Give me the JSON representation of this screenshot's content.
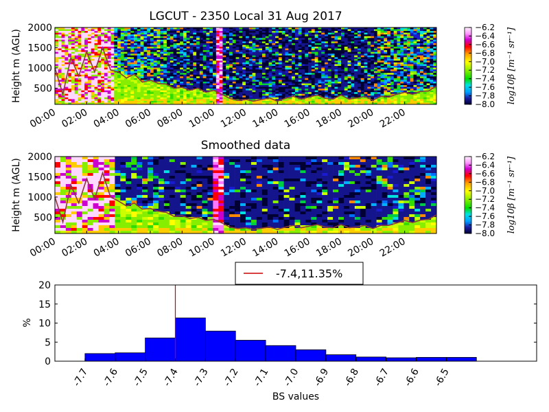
{
  "chart_data": [
    {
      "type": "heatmap",
      "title": "LGCUT - 2350 Local 31 Aug 2017",
      "ylabel": "Height m (AGL)",
      "ylim": [
        100,
        2000
      ],
      "yticks": [
        "500",
        "1000",
        "1500",
        "2000"
      ],
      "xticks": [
        "00:00",
        "02:00",
        "04:00",
        "06:00",
        "08:00",
        "10:00",
        "12:00",
        "14:00",
        "16:00",
        "18:00",
        "20:00",
        "22:00"
      ],
      "colorbar": {
        "label": "log10β [m⁻¹ sr⁻¹]",
        "ticks": [
          "−6.2",
          "−6.4",
          "−6.6",
          "−6.8",
          "−7.0",
          "−7.2",
          "−7.4",
          "−7.6",
          "−7.8",
          "−8.0"
        ],
        "range": [
          -8.0,
          -6.2
        ]
      },
      "line": {
        "name": "",
        "color": "#8b3a3a",
        "x": [
          0.0,
          0.5,
          1.0,
          1.5,
          2.0,
          2.5,
          3.0,
          3.5,
          4.0,
          4.5,
          5.0,
          5.5,
          6.0,
          6.5,
          7.0,
          7.5,
          8.0,
          8.5,
          9.0,
          9.5,
          10.0,
          10.5,
          11.0,
          11.5,
          12.0,
          12.5,
          13.0,
          13.5,
          14.0,
          14.5,
          15.0,
          15.5,
          16.0,
          16.5,
          17.0,
          17.5,
          18.0,
          18.5,
          19.0,
          19.5,
          20.0,
          20.5,
          21.0,
          21.5,
          22.0,
          22.5,
          23.0,
          23.5,
          24.0
        ],
        "y": [
          1000,
          350,
          1250,
          800,
          1400,
          900,
          1500,
          950,
          900,
          750,
          850,
          650,
          700,
          620,
          600,
          500,
          520,
          450,
          500,
          400,
          450,
          350,
          250,
          200,
          220,
          180,
          220,
          260,
          180,
          250,
          300,
          230,
          280,
          330,
          250,
          230,
          330,
          230,
          260,
          300,
          200,
          300,
          280,
          350,
          400,
          350,
          420,
          430,
          550
        ]
      }
    },
    {
      "type": "heatmap",
      "title": "Smoothed data",
      "ylabel": "Height m (AGL)",
      "ylim": [
        100,
        2000
      ],
      "yticks": [
        "500",
        "1000",
        "1500",
        "2000"
      ],
      "xticks": [
        "00:00",
        "02:00",
        "04:00",
        "06:00",
        "08:00",
        "10:00",
        "12:00",
        "14:00",
        "16:00",
        "18:00",
        "20:00",
        "22:00"
      ],
      "colorbar": {
        "label": "log10β [m⁻¹ sr⁻¹]",
        "ticks": [
          "−6.2",
          "−6.4",
          "−6.6",
          "−6.8",
          "−7.0",
          "−7.2",
          "−7.4",
          "−7.6",
          "−7.8",
          "−8.0"
        ],
        "range": [
          -8.0,
          -6.2
        ]
      },
      "line": {
        "name": "",
        "color": "#8b3a3a",
        "x": [
          0.0,
          0.5,
          1.0,
          1.5,
          2.0,
          2.5,
          3.0,
          3.5,
          4.0,
          4.5,
          5.0,
          5.5,
          6.0,
          6.5,
          7.0,
          7.5,
          8.0,
          8.5,
          9.0,
          9.5,
          10.0,
          10.5,
          11.0,
          11.5,
          12.0,
          12.5,
          13.0,
          13.5,
          14.0,
          14.5,
          15.0,
          15.5,
          16.0,
          16.5,
          17.0,
          17.5,
          18.0,
          18.5,
          19.0,
          19.5,
          20.0,
          20.5,
          21.0,
          21.5,
          22.0,
          22.5,
          23.0,
          23.5,
          24.0
        ],
        "y": [
          1000,
          380,
          1300,
          850,
          1450,
          950,
          1600,
          1000,
          900,
          780,
          850,
          700,
          720,
          650,
          620,
          520,
          540,
          470,
          500,
          420,
          450,
          360,
          260,
          220,
          240,
          200,
          230,
          260,
          200,
          260,
          300,
          240,
          280,
          320,
          260,
          240,
          320,
          240,
          260,
          300,
          220,
          300,
          300,
          360,
          420,
          370,
          430,
          450,
          560
        ]
      }
    },
    {
      "type": "bar",
      "ylabel": "%",
      "xlabel": "BS values",
      "ylim": [
        0,
        20
      ],
      "yticks": [
        "0",
        "5",
        "10",
        "15",
        "20"
      ],
      "categories": [
        "-7.7",
        "-7.6",
        "-7.5",
        "-7.4",
        "-7.3",
        "-7.2",
        "-7.1",
        "-7.0",
        "-6.9",
        "-6.8",
        "-6.7",
        "-6.6",
        "-6.5"
      ],
      "values": [
        2.0,
        2.2,
        6.1,
        11.35,
        7.9,
        5.5,
        4.1,
        3.0,
        1.7,
        1.1,
        0.9,
        1.0,
        1.0
      ],
      "vline": {
        "x": -7.4,
        "color": "#cc0000"
      },
      "legend": {
        "label": "-7.4,11.35%",
        "position": "top-center"
      },
      "bar_color": "#0000ff"
    }
  ]
}
